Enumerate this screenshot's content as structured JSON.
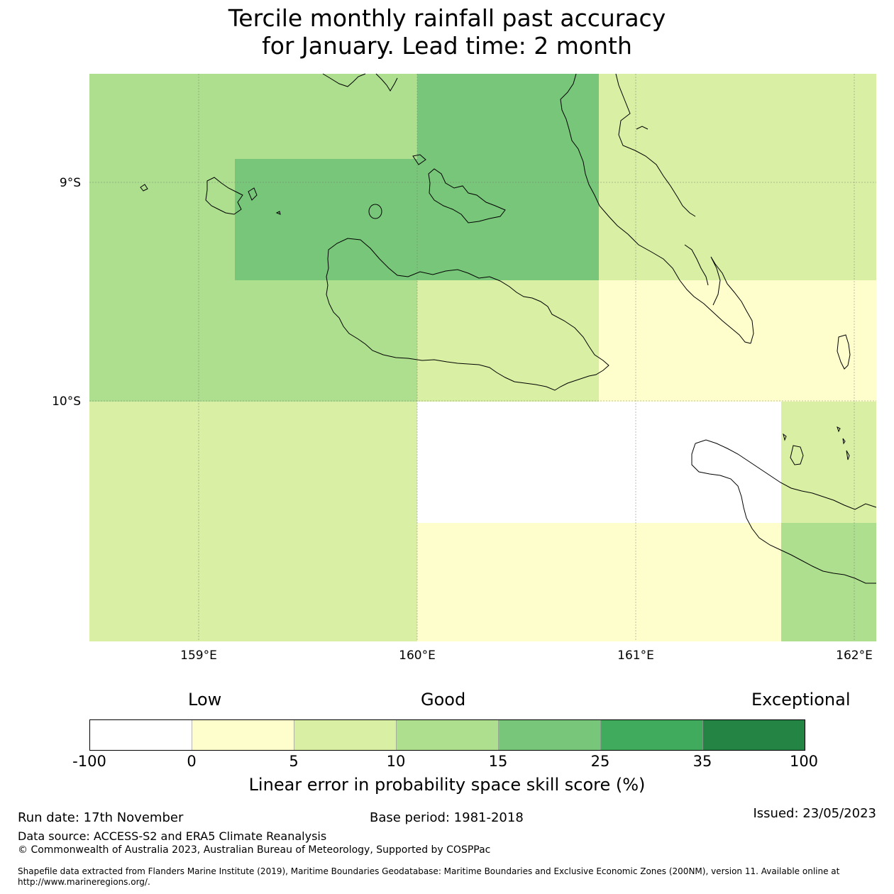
{
  "title_line1": "Tercile monthly rainfall past accuracy",
  "title_line2": "for January. Lead time: 2 month",
  "map": {
    "lat_labels": [
      "9°S",
      "10°S"
    ],
    "lon_labels": [
      "159°E",
      "160°E",
      "161°E",
      "162°E"
    ]
  },
  "colorbar": {
    "word_low": "Low",
    "word_good": "Good",
    "word_exceptional": "Exceptional",
    "tick_labels": [
      "-100",
      "0",
      "5",
      "10",
      "15",
      "25",
      "35",
      "100"
    ],
    "colors": [
      "#ffffff",
      "#fefecc",
      "#d9efa3",
      "#addf8e",
      "#78c679",
      "#41ab5d",
      "#238443"
    ],
    "label": "Linear error in probability space skill score (%)"
  },
  "footer": {
    "run_date": "Run date: 17th November",
    "base_period": "Base period: 1981-2018",
    "issued": "Issued: 23/05/2023",
    "data_source": "Data source: ACCESS-S2 and ERA5 Climate Reanalysis",
    "copyright": "© Commonwealth of Australia 2023, Australian Bureau of Meteorology, Supported by COSPPac",
    "shapefile_line1": "Shapefile data extracted from Flanders Marine Institute (2019), Maritime Boundaries Geodatabase: Maritime Boundaries and Exclusive Economic Zones (200NM), version 11. Available online at",
    "shapefile_line2": "http://www.marineregions.org/."
  }
}
